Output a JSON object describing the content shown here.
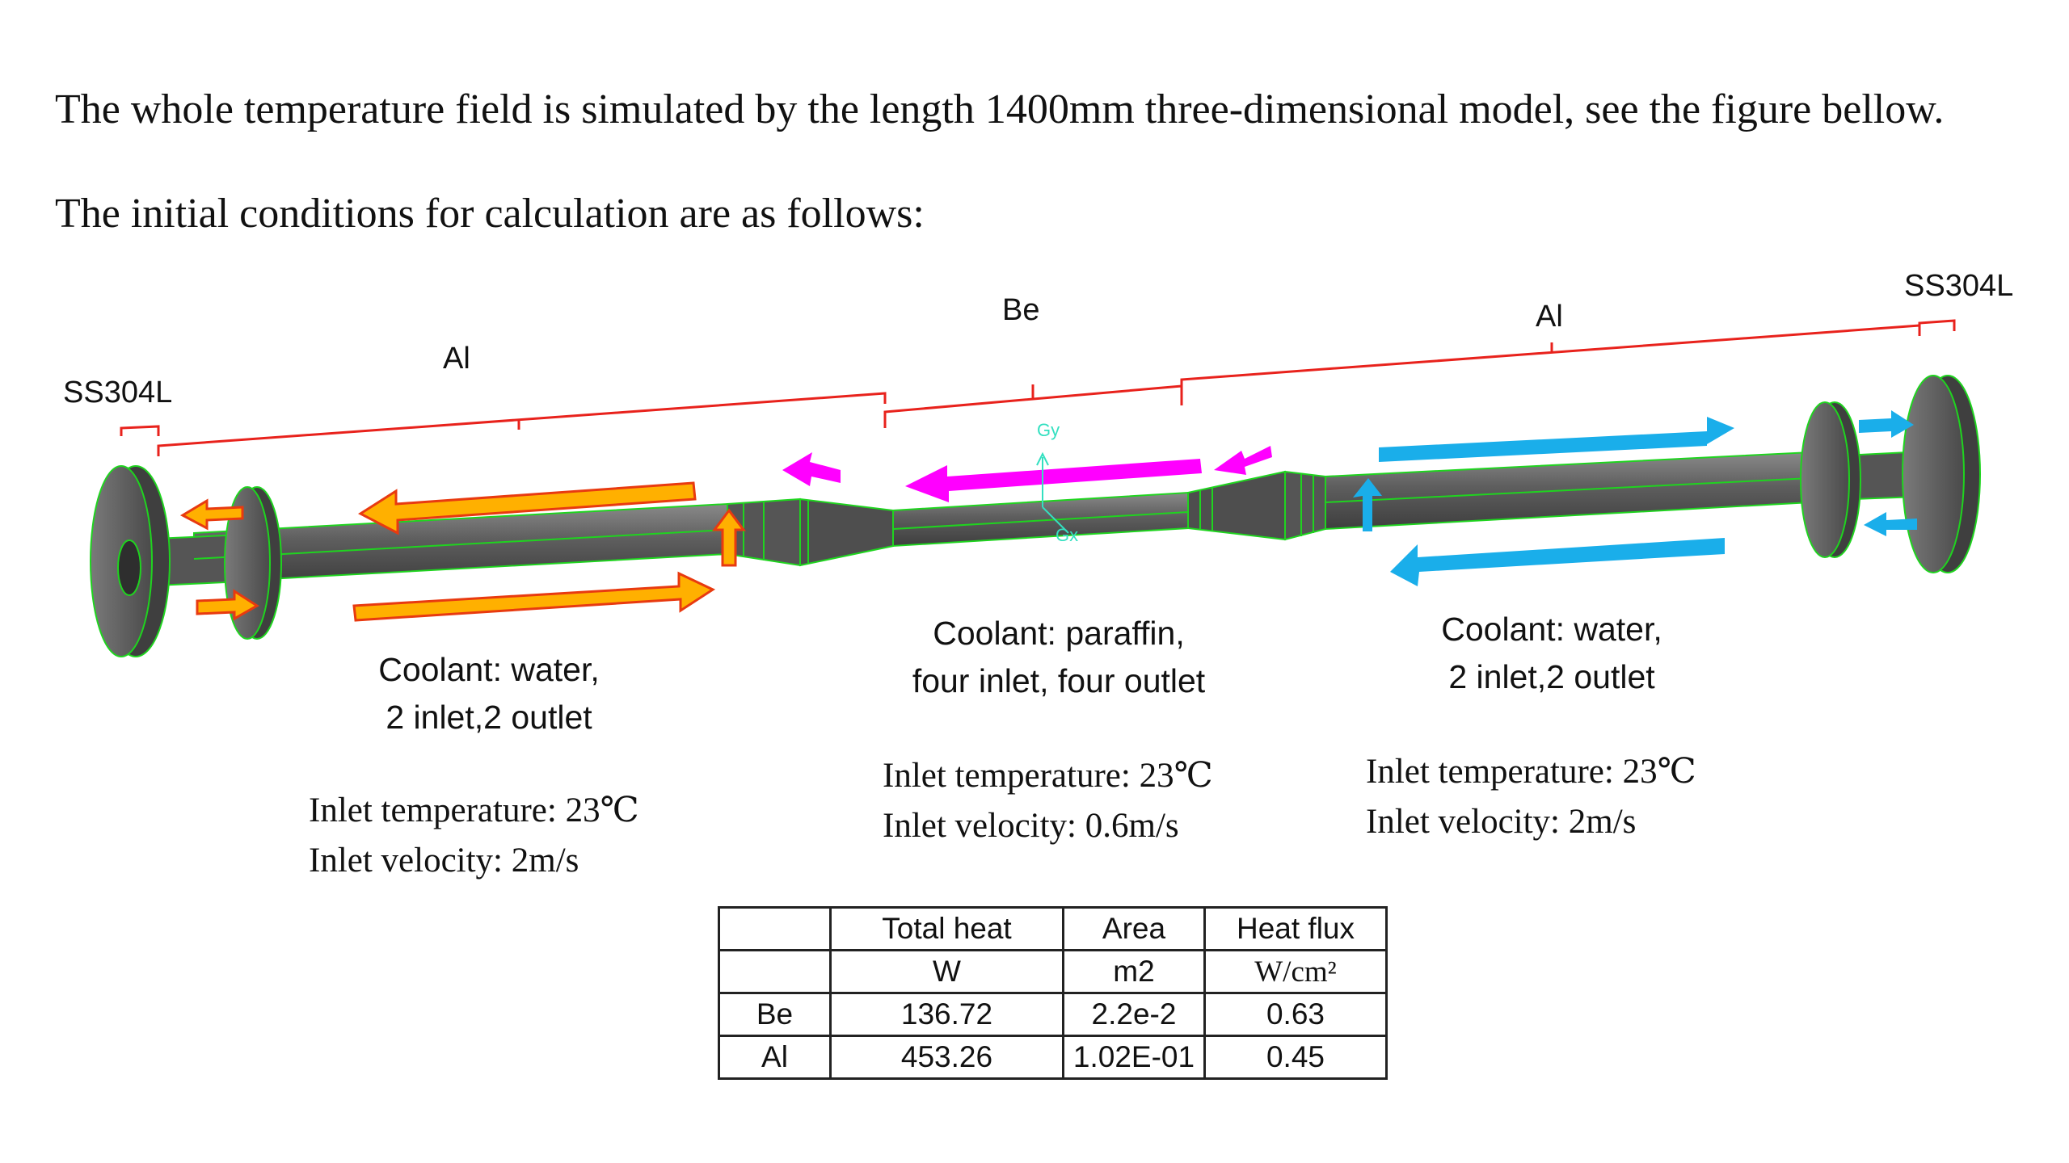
{
  "intro": {
    "line1": "The whole temperature field is simulated by the length 1400mm three-dimensional model, see the figure bellow.",
    "line2": "The initial conditions for calculation are as follows:"
  },
  "diagram": {
    "labels": {
      "ss_left": "SS304L",
      "al_left": "Al",
      "be": "Be",
      "al_right": "Al",
      "ss_right": "SS304L",
      "axis_gy": "Gy",
      "axis_gx": "Gx"
    },
    "colors": {
      "bracket": "#e8221c",
      "tube": "#5e5e5e",
      "outline": "#1fd41f",
      "arrow_orange": "#ffb000",
      "arrow_orange_border": "#e83a10",
      "arrow_magenta": "#ff00ff",
      "arrow_blue": "#1aaeea",
      "axis": "#33e0c0"
    }
  },
  "sections": {
    "left": {
      "coolant_line1": "Coolant: water,",
      "coolant_line2": "2 inlet,2 outlet",
      "temp": "Inlet temperature: 23℃",
      "velocity": "Inlet velocity: 2m/s"
    },
    "middle": {
      "coolant_line1": "Coolant: paraffin,",
      "coolant_line2": "four inlet, four outlet",
      "temp": "Inlet temperature: 23℃",
      "velocity": "Inlet velocity: 0.6m/s"
    },
    "right": {
      "coolant_line1": "Coolant: water,",
      "coolant_line2": "2 inlet,2 outlet",
      "temp": "Inlet temperature: 23℃",
      "velocity": "Inlet velocity: 2m/s"
    }
  },
  "table": {
    "header1": [
      "",
      "Total heat",
      "Area",
      "Heat flux"
    ],
    "header2": [
      "",
      "W",
      "m2",
      "W/cm²"
    ],
    "rows": [
      [
        "Be",
        "136.72",
        "2.2e-2",
        "0.63"
      ],
      [
        "Al",
        "453.26",
        "1.02E-01",
        "0.45"
      ]
    ]
  }
}
